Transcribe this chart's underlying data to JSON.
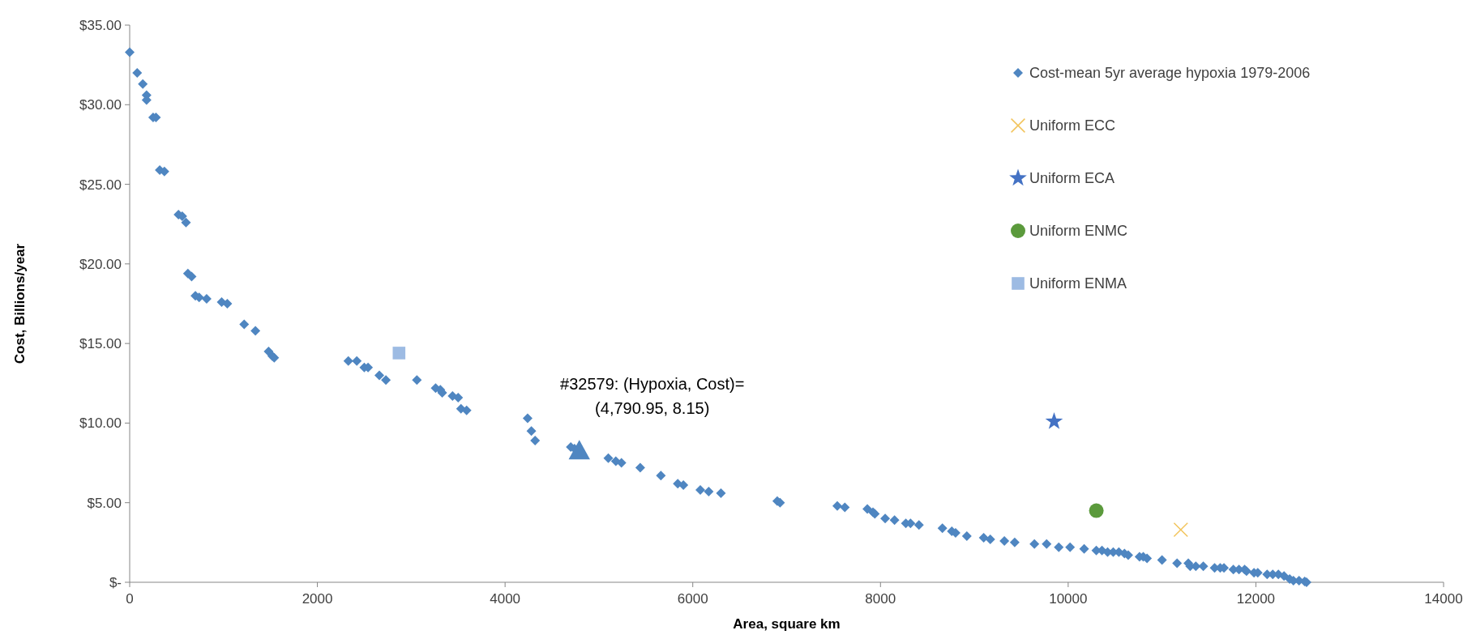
{
  "chart_data": {
    "type": "scatter",
    "xlabel": "Area, square km",
    "ylabel": "Cost, Billions/year",
    "xlim": [
      0,
      14000
    ],
    "xticks": [
      0,
      2000,
      4000,
      6000,
      8000,
      10000,
      12000,
      14000
    ],
    "ylim": [
      0,
      35
    ],
    "yticks": [
      {
        "value": 0,
        "label": "$-"
      },
      {
        "value": 5,
        "label": "$5.00"
      },
      {
        "value": 10,
        "label": "$10.00"
      },
      {
        "value": 15,
        "label": "$15.00"
      },
      {
        "value": 20,
        "label": "$20.00"
      },
      {
        "value": 25,
        "label": "$25.00"
      },
      {
        "value": 30,
        "label": "$30.00"
      },
      {
        "value": 35,
        "label": "$35.00"
      }
    ],
    "grid": false,
    "legend": "top right",
    "annotations": [
      {
        "text": "#32579: (Hypoxia, Cost)=\n(4,790.95, 8.15)",
        "x": 4790.95,
        "y": 8.15
      }
    ],
    "series": [
      {
        "name": "Cost-mean 5yr average hypoxia 1979-2006",
        "color": "#4f86c1",
        "marker": "diamond",
        "x": [
          0,
          80,
          140,
          180,
          180,
          250,
          280,
          320,
          370,
          520,
          560,
          600,
          620,
          660,
          700,
          740,
          820,
          980,
          1040,
          1220,
          1340,
          1480,
          1520,
          1540,
          2330,
          2420,
          2500,
          2540,
          2660,
          2730,
          3060,
          3260,
          3310,
          3330,
          3440,
          3500,
          3530,
          3590,
          4240,
          4280,
          4320,
          4700,
          4740,
          5100,
          5180,
          5240,
          5440,
          5660,
          5840,
          5900,
          6080,
          6170,
          6300,
          6900,
          6930,
          7540,
          7620,
          7860,
          7920,
          7940,
          8050,
          8150,
          8270,
          8320,
          8410,
          8660,
          8760,
          8800,
          8920,
          9100,
          9170,
          9320,
          9430,
          9640,
          9770,
          9900,
          10020,
          10170,
          10300,
          10360,
          10420,
          10480,
          10540,
          10600,
          10640,
          10760,
          10800,
          10840,
          11000,
          11160,
          11280,
          11300,
          11360,
          11440,
          11560,
          11620,
          11660,
          11760,
          11820,
          11880,
          11900,
          11980,
          12020,
          12120,
          12180,
          12240,
          12300,
          12360,
          12400,
          12460,
          12520,
          12540
        ],
        "values": [
          33.3,
          32.0,
          31.3,
          30.6,
          30.3,
          29.2,
          29.2,
          25.9,
          25.8,
          23.1,
          23.0,
          22.6,
          19.4,
          19.2,
          18.0,
          17.9,
          17.8,
          17.6,
          17.5,
          16.2,
          15.8,
          14.5,
          14.2,
          14.1,
          13.9,
          13.9,
          13.5,
          13.5,
          13.0,
          12.7,
          12.7,
          12.2,
          12.1,
          11.9,
          11.7,
          11.6,
          10.9,
          10.8,
          10.3,
          9.5,
          8.9,
          8.5,
          8.4,
          7.8,
          7.6,
          7.5,
          7.2,
          6.7,
          6.2,
          6.1,
          5.8,
          5.7,
          5.6,
          5.1,
          5.0,
          4.8,
          4.7,
          4.6,
          4.4,
          4.3,
          4.0,
          3.9,
          3.7,
          3.7,
          3.6,
          3.4,
          3.2,
          3.1,
          2.9,
          2.8,
          2.7,
          2.6,
          2.5,
          2.4,
          2.4,
          2.2,
          2.2,
          2.1,
          2.0,
          2.0,
          1.9,
          1.9,
          1.9,
          1.8,
          1.7,
          1.6,
          1.6,
          1.5,
          1.4,
          1.2,
          1.2,
          1.0,
          1.0,
          1.0,
          0.9,
          0.9,
          0.9,
          0.8,
          0.8,
          0.8,
          0.7,
          0.6,
          0.6,
          0.5,
          0.5,
          0.5,
          0.4,
          0.2,
          0.1,
          0.1,
          0.05,
          0.0
        ]
      },
      {
        "name": "Uniform ECC",
        "color": "#f2c45c",
        "marker": "cross",
        "x": [
          11200
        ],
        "values": [
          3.3
        ]
      },
      {
        "name": "Uniform ECA",
        "color": "#4472c4",
        "marker": "star",
        "x": [
          9850
        ],
        "values": [
          10.1
        ]
      },
      {
        "name": "Uniform ENMC",
        "color": "#5b9a3c",
        "marker": "circle",
        "x": [
          10300
        ],
        "values": [
          4.5
        ]
      },
      {
        "name": "Uniform ENMA",
        "color": "#9dbbe3",
        "marker": "square",
        "x": [
          2870
        ],
        "values": [
          14.4
        ]
      },
      {
        "color": "#4f86c1",
        "marker": "triangle",
        "x": [
          4790.95
        ],
        "values": [
          8.15
        ]
      }
    ]
  }
}
